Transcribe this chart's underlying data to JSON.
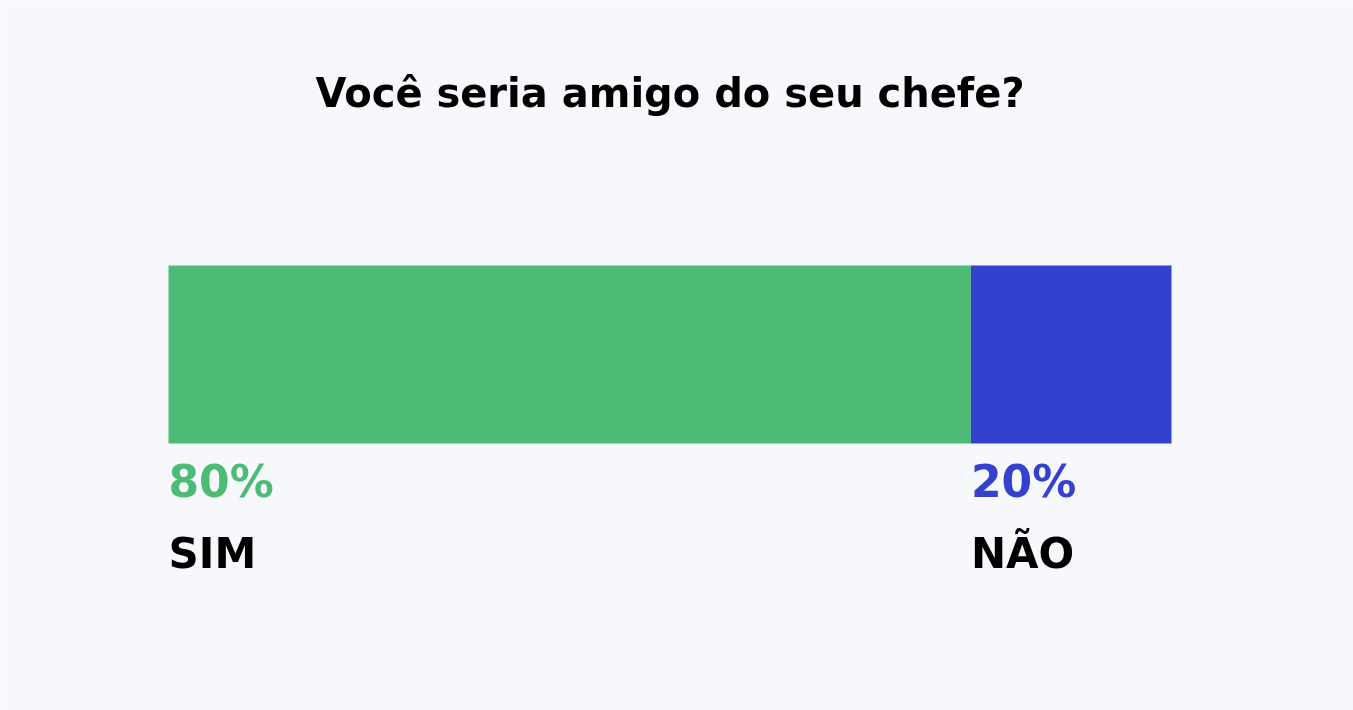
{
  "chart_data": {
    "type": "bar",
    "title": "Você seria amigo do seu chefe?",
    "orientation": "horizontal",
    "stacked": true,
    "categories": [
      null
    ],
    "tick_labels": false,
    "grid": false,
    "legend": false,
    "series": [
      {
        "name": "SIM",
        "color": "#4bbb76",
        "values": [
          80
        ],
        "value_labels": [
          "80%"
        ]
      },
      {
        "name": "NÃO",
        "color": "#3440ce",
        "values": [
          20
        ],
        "value_labels": [
          "20%"
        ]
      }
    ]
  }
}
